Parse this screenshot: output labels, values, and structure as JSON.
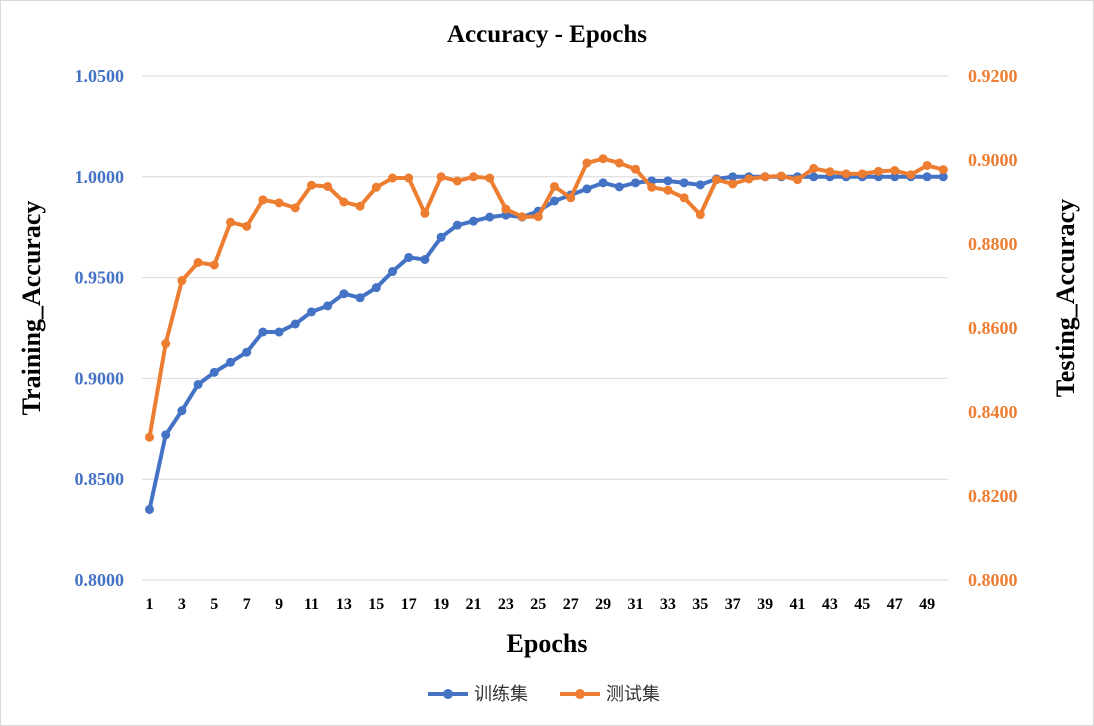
{
  "chart_data": {
    "type": "line",
    "title": "Accuracy  - Epochs",
    "xlabel": "Epochs",
    "ylabel_left": "Training_Accuracy",
    "ylabel_right": "Testing_Accuracy",
    "x": [
      1,
      2,
      3,
      4,
      5,
      6,
      7,
      8,
      9,
      10,
      11,
      12,
      13,
      14,
      15,
      16,
      17,
      18,
      19,
      20,
      21,
      22,
      23,
      24,
      25,
      26,
      27,
      28,
      29,
      30,
      31,
      32,
      33,
      34,
      35,
      36,
      37,
      38,
      39,
      40,
      41,
      42,
      43,
      44,
      45,
      46,
      47,
      48,
      49,
      50
    ],
    "x_tick_labels": [
      "1",
      "3",
      "5",
      "7",
      "9",
      "11",
      "13",
      "15",
      "17",
      "19",
      "21",
      "23",
      "25",
      "27",
      "29",
      "31",
      "33",
      "35",
      "37",
      "39",
      "41",
      "43",
      "45",
      "47",
      "49"
    ],
    "y_left_lim": [
      0.8,
      1.05
    ],
    "y_left_ticks": [
      "0.8000",
      "0.8500",
      "0.9000",
      "0.9500",
      "1.0000",
      "1.0500"
    ],
    "y_right_lim": [
      0.8,
      0.92
    ],
    "y_right_ticks": [
      "0.8000",
      "0.8200",
      "0.8400",
      "0.8600",
      "0.8800",
      "0.9000",
      "0.9200"
    ],
    "grid": true,
    "legend_position": "bottom",
    "series": [
      {
        "name": "训练集",
        "axis": "left",
        "color": "#4472c4",
        "values": [
          0.835,
          0.872,
          0.884,
          0.897,
          0.903,
          0.908,
          0.913,
          0.923,
          0.923,
          0.927,
          0.933,
          0.936,
          0.942,
          0.94,
          0.945,
          0.953,
          0.96,
          0.959,
          0.97,
          0.976,
          0.978,
          0.98,
          0.981,
          0.98,
          0.983,
          0.988,
          0.991,
          0.994,
          0.997,
          0.995,
          0.997,
          0.998,
          0.998,
          0.997,
          0.996,
          0.999,
          1.0,
          1.0,
          1.0,
          1.0,
          1.0,
          1.0,
          1.0,
          1.0,
          1.0,
          1.0,
          1.0,
          1.0,
          1.0,
          1.0
        ]
      },
      {
        "name": "测试集",
        "axis": "right",
        "color": "#ed7d31",
        "values": [
          0.834,
          0.8563,
          0.8713,
          0.8756,
          0.875,
          0.8852,
          0.8842,
          0.8905,
          0.8898,
          0.8886,
          0.894,
          0.8937,
          0.89,
          0.889,
          0.8935,
          0.8957,
          0.8957,
          0.8873,
          0.896,
          0.895,
          0.896,
          0.8957,
          0.8883,
          0.8865,
          0.8865,
          0.8937,
          0.891,
          0.8993,
          0.9003,
          0.8993,
          0.8978,
          0.8935,
          0.8928,
          0.891,
          0.887,
          0.8953,
          0.8943,
          0.8955,
          0.896,
          0.8962,
          0.8953,
          0.898,
          0.8972,
          0.8967,
          0.8967,
          0.8973,
          0.8975,
          0.8965,
          0.8987,
          0.8977
        ]
      }
    ]
  }
}
